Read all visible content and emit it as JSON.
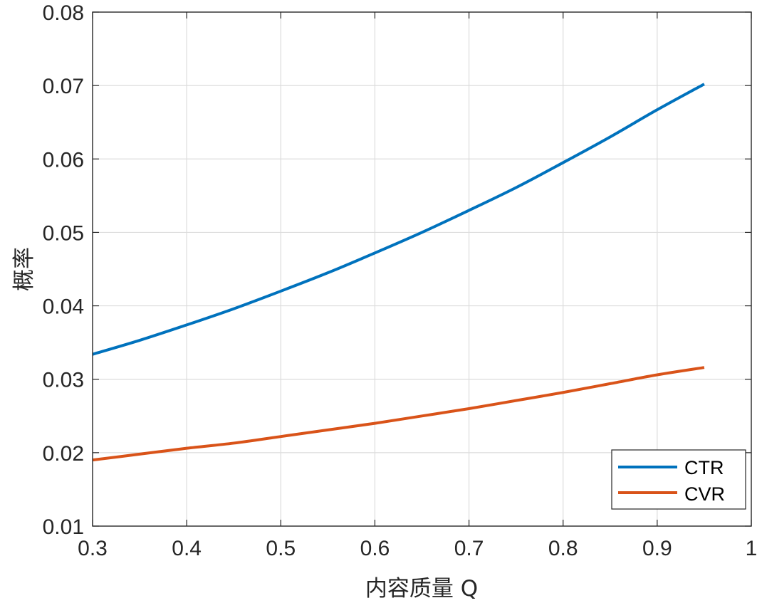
{
  "chart_data": {
    "type": "line",
    "title": "",
    "xlabel": "内容质量 Q",
    "ylabel": "概率",
    "xlim": [
      0.3,
      1
    ],
    "ylim": [
      0.01,
      0.08
    ],
    "xticks": [
      0.3,
      0.4,
      0.5,
      0.6,
      0.7,
      0.8,
      0.9,
      1
    ],
    "xtick_labels": [
      "0.3",
      "0.4",
      "0.5",
      "0.6",
      "0.7",
      "0.8",
      "0.9",
      "1"
    ],
    "yticks": [
      0.01,
      0.02,
      0.03,
      0.04,
      0.05,
      0.06,
      0.07,
      0.08
    ],
    "ytick_labels": [
      "0.01",
      "0.02",
      "0.03",
      "0.04",
      "0.05",
      "0.06",
      "0.07",
      "0.08"
    ],
    "grid": true,
    "legend_position": "bottom-right",
    "x": [
      0.3,
      0.35,
      0.4,
      0.45,
      0.5,
      0.55,
      0.6,
      0.65,
      0.7,
      0.75,
      0.8,
      0.85,
      0.9,
      0.95
    ],
    "series": [
      {
        "name": "CTR",
        "color": "#0072BD",
        "values": [
          0.0334,
          0.0353,
          0.0374,
          0.0396,
          0.042,
          0.0445,
          0.0472,
          0.05,
          0.053,
          0.0561,
          0.0595,
          0.063,
          0.0667,
          0.0702
        ]
      },
      {
        "name": "CVR",
        "color": "#D95319",
        "values": [
          0.019,
          0.0198,
          0.0206,
          0.0213,
          0.0222,
          0.0231,
          0.024,
          0.025,
          0.026,
          0.0271,
          0.0282,
          0.0294,
          0.0306,
          0.0316
        ]
      }
    ]
  }
}
